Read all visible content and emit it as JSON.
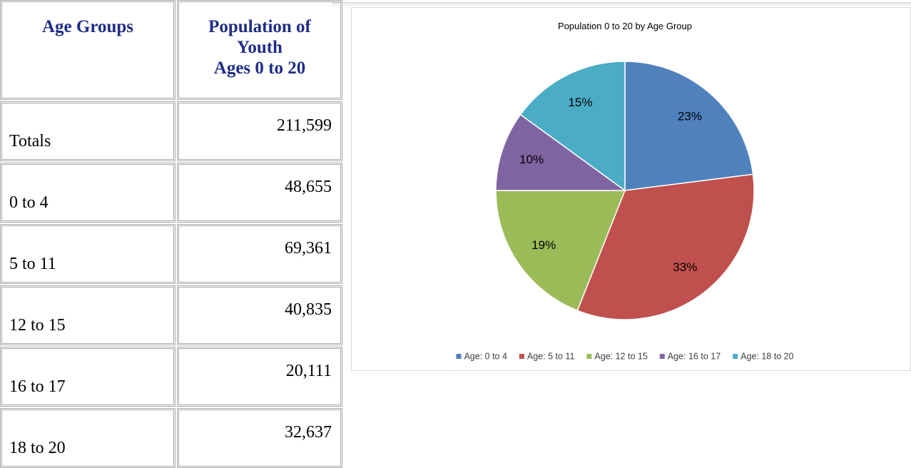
{
  "table": {
    "header": [
      "Age Groups",
      [
        "Population of",
        "Youth",
        "Ages 0 to 20"
      ]
    ],
    "rows": [
      [
        "Totals",
        "211,599"
      ],
      [
        "0 to 4",
        "48,655"
      ],
      [
        "5 to 11",
        "69,361"
      ],
      [
        "12 to 15",
        "40,835"
      ],
      [
        "16 to 17",
        "20,111"
      ],
      [
        "18 to 20",
        "32,637"
      ]
    ]
  },
  "chart_data": {
    "type": "pie",
    "title": "Population 0 to 20 by Age Group",
    "categories": [
      "Age: 0 to 4",
      "Age: 5 to 11",
      "Age: 12 to 15",
      "Age: 16 to 17",
      "Age: 18 to 20"
    ],
    "values": [
      23,
      33,
      19,
      10,
      15
    ],
    "value_labels": [
      "23%",
      "33%",
      "19%",
      "10%",
      "15%"
    ],
    "colors": [
      "#4f81bd",
      "#c0504d",
      "#9bbb59",
      "#8064a2",
      "#4bacc6"
    ],
    "legend": "bottom"
  }
}
